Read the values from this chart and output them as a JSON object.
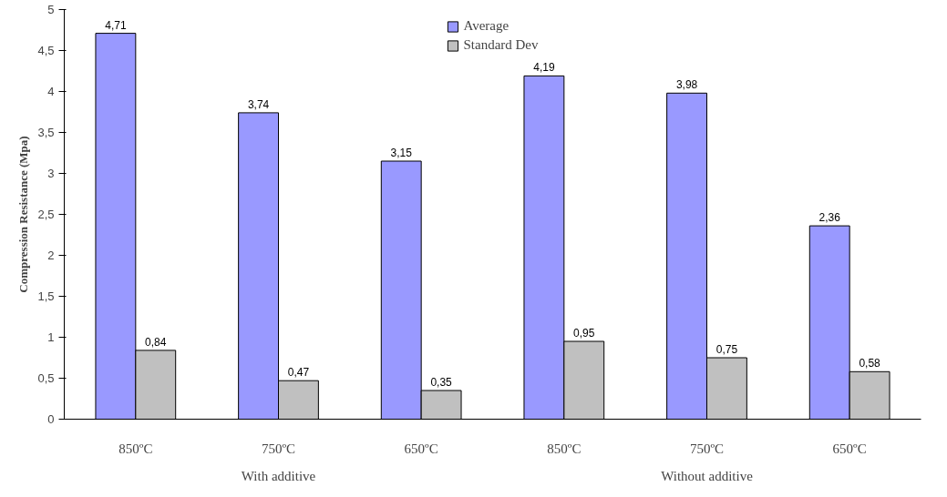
{
  "chart_data": {
    "type": "bar",
    "ylabel": "Compression Resistance (Mpa)",
    "categories": [
      "850ºC",
      "750ºC",
      "650ºC",
      "850ºC",
      "750ºC",
      "650ºC"
    ],
    "annotations": [
      "With additive",
      "Without additive"
    ],
    "series": [
      {
        "name": "Average",
        "color": "#9999ff",
        "values": [
          4.71,
          3.74,
          3.15,
          4.19,
          3.98,
          2.36
        ],
        "value_labels": [
          "4,71",
          "3,74",
          "3,15",
          "4,19",
          "3,98",
          "2,36"
        ]
      },
      {
        "name": "Standard Dev",
        "color": "#c0c0c0",
        "values": [
          0.84,
          0.47,
          0.35,
          0.95,
          0.75,
          0.58
        ],
        "value_labels": [
          "0,84",
          "0,47",
          "0,35",
          "0,95",
          "0,75",
          "0,58"
        ]
      }
    ],
    "ylim": [
      0,
      5
    ],
    "yticks": [
      0,
      {
        "value": 0.5,
        "label": "0,5"
      },
      1,
      {
        "value": 1.5,
        "label": "1,5"
      },
      2,
      {
        "value": 2.5,
        "label": "2,5"
      },
      3,
      {
        "value": 3.5,
        "label": "3,5"
      },
      4,
      {
        "value": 4.5,
        "label": "4,5"
      },
      5
    ],
    "grid": false,
    "legend": "top"
  }
}
